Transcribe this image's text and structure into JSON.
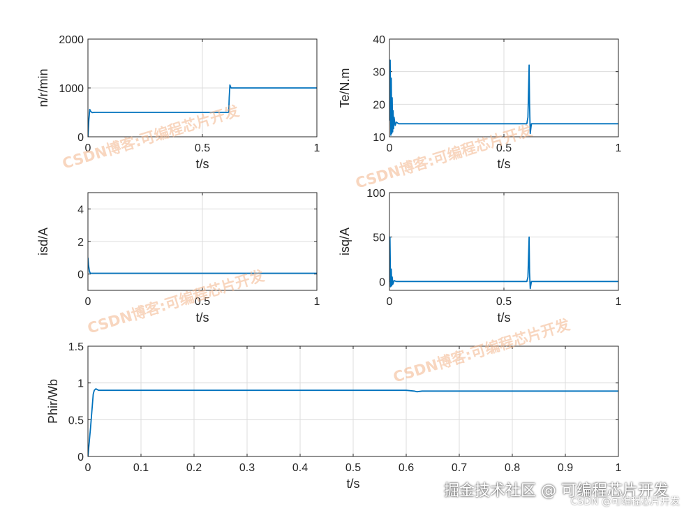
{
  "chart_data": [
    {
      "type": "line",
      "xlabel": "t/s",
      "ylabel": "n/r/min",
      "xlim": [
        0,
        1
      ],
      "ylim": [
        0,
        2000
      ],
      "xticks": [
        "0",
        "0.5",
        "1"
      ],
      "yticks": [
        "0",
        "1000",
        "2000"
      ],
      "grid": true,
      "series_color": "#0072BD",
      "series": [
        {
          "x": [
            0,
            0.004,
            0.008,
            0.012,
            0.018,
            0.03,
            0.1,
            0.3,
            0.5,
            0.6,
            0.615,
            0.617,
            0.62,
            0.625,
            0.63,
            0.7,
            0.8,
            1.0
          ],
          "values": [
            0,
            350,
            560,
            520,
            495,
            500,
            500,
            500,
            500,
            500,
            500,
            800,
            1060,
            1000,
            1000,
            1000,
            1000,
            1000
          ]
        }
      ]
    },
    {
      "type": "line",
      "xlabel": "t/s",
      "ylabel": "Te/N.m",
      "xlim": [
        0,
        1
      ],
      "ylim": [
        10,
        40
      ],
      "xticks": [
        "0",
        "0.5",
        "1"
      ],
      "yticks": [
        "10",
        "20",
        "30",
        "40"
      ],
      "grid": true,
      "series_color": "#0072BD",
      "series": [
        {
          "x": [
            0,
            0.003,
            0.006,
            0.008,
            0.01,
            0.012,
            0.014,
            0.016,
            0.018,
            0.02,
            0.025,
            0.03,
            0.04,
            0.1,
            0.3,
            0.5,
            0.6,
            0.605,
            0.61,
            0.612,
            0.615,
            0.62,
            0.7,
            0.8,
            0.9,
            1.0
          ],
          "values": [
            15,
            33.5,
            10.5,
            28,
            11,
            22,
            11.5,
            18,
            12.5,
            16,
            13.5,
            14.5,
            14,
            14,
            14,
            14,
            14,
            16,
            32,
            20,
            11,
            14,
            14,
            14,
            14,
            14
          ]
        }
      ]
    },
    {
      "type": "line",
      "xlabel": "t/s",
      "ylabel": "isd/A",
      "xlim": [
        0,
        1
      ],
      "ylim": [
        -1,
        5
      ],
      "xticks": [
        "0",
        "0.5",
        "1"
      ],
      "yticks": [
        "0",
        "2",
        "4"
      ],
      "grid": true,
      "series_color": "#0072BD",
      "series": [
        {
          "x": [
            0,
            0.002,
            0.006,
            0.01,
            0.02,
            0.1,
            0.5,
            1.0
          ],
          "values": [
            1.0,
            0.6,
            0.2,
            0.05,
            0.05,
            0.05,
            0.05,
            0.05
          ]
        }
      ]
    },
    {
      "type": "line",
      "xlabel": "t/s",
      "ylabel": "isq/A",
      "xlim": [
        0,
        1
      ],
      "ylim": [
        -10,
        100
      ],
      "xticks": [
        "0",
        "0.5",
        "1"
      ],
      "yticks": [
        "0",
        "50",
        "100"
      ],
      "grid": true,
      "series_color": "#0072BD",
      "series": [
        {
          "x": [
            0,
            0.002,
            0.005,
            0.008,
            0.01,
            0.012,
            0.015,
            0.02,
            0.03,
            0.1,
            0.5,
            0.6,
            0.605,
            0.61,
            0.612,
            0.615,
            0.62,
            0.7,
            1.0
          ],
          "values": [
            0,
            50,
            -6,
            14,
            -5,
            5,
            -3,
            1,
            0,
            0,
            0,
            0,
            5,
            50,
            10,
            -8,
            0,
            0,
            0
          ]
        }
      ]
    },
    {
      "type": "line",
      "xlabel": "t/s",
      "ylabel": "Phir/Wb",
      "xlim": [
        0,
        1
      ],
      "ylim": [
        0,
        1.5
      ],
      "xticks": [
        "0",
        "0.1",
        "0.2",
        "0.3",
        "0.4",
        "0.5",
        "0.6",
        "0.7",
        "0.8",
        "0.9",
        "1"
      ],
      "yticks": [
        "0",
        "0.5",
        "1",
        "1.5"
      ],
      "grid": true,
      "series_color": "#0072BD",
      "series": [
        {
          "x": [
            0,
            0.005,
            0.01,
            0.012,
            0.015,
            0.02,
            0.1,
            0.3,
            0.5,
            0.6,
            0.615,
            0.62,
            0.63,
            0.7,
            0.8,
            1.0
          ],
          "values": [
            0,
            0.4,
            0.85,
            0.9,
            0.92,
            0.9,
            0.9,
            0.9,
            0.9,
            0.9,
            0.89,
            0.88,
            0.89,
            0.89,
            0.89,
            0.89
          ]
        }
      ]
    }
  ],
  "watermarks": [
    "CSDN博客:可编程芯片开发",
    "CSDN博客:可编程芯片开发",
    "CSDN博客:可编程芯片开发",
    "CSDN博客:可编程芯片开发"
  ],
  "footer": {
    "brand": "掘金技术社区 @ 可编程芯片开发",
    "source": "CSDN @可编程芯片开发"
  }
}
